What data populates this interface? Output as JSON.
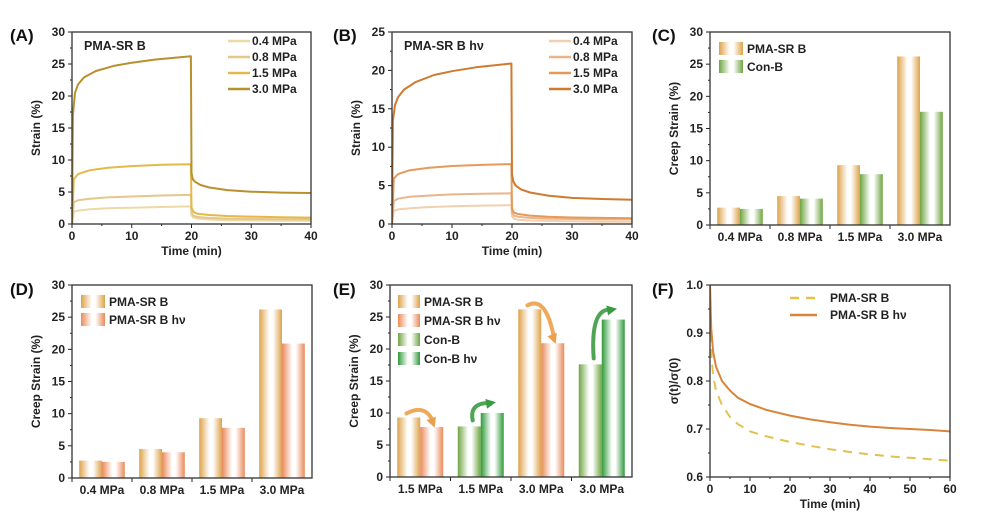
{
  "chart_data": [
    {
      "id": "A",
      "type": "line",
      "panel_label": "(A)",
      "inset_title": "PMA-SR B",
      "xlabel": "Time (min)",
      "ylabel": "Strain (%)",
      "xlim": [
        0,
        40
      ],
      "ylim": [
        0,
        30
      ],
      "xticks": [
        0,
        10,
        20,
        30,
        40
      ],
      "yticks": [
        0,
        5,
        10,
        15,
        20,
        25,
        30
      ],
      "legend_position": "top-right",
      "series": [
        {
          "name": "0.4 MPa",
          "color": "#ecd9a6",
          "x": [
            0,
            0.3,
            1,
            3,
            6,
            10,
            15,
            19.9,
            20,
            20.3,
            21,
            23,
            26,
            30,
            35,
            40
          ],
          "y": [
            0,
            1.9,
            2.1,
            2.3,
            2.45,
            2.55,
            2.65,
            2.75,
            1.4,
            1.0,
            0.85,
            0.7,
            0.6,
            0.55,
            0.5,
            0.5
          ]
        },
        {
          "name": "0.8 MPa",
          "color": "#e5c78a",
          "x": [
            0,
            0.3,
            1,
            3,
            6,
            10,
            15,
            19.9,
            20,
            20.3,
            21,
            23,
            26,
            30,
            35,
            40
          ],
          "y": [
            0,
            3.4,
            3.7,
            3.95,
            4.15,
            4.3,
            4.45,
            4.55,
            1.8,
            1.3,
            1.1,
            0.95,
            0.85,
            0.8,
            0.75,
            0.7
          ]
        },
        {
          "name": "1.5 MPa",
          "color": "#e2b94a",
          "x": [
            0,
            0.3,
            1,
            3,
            6,
            10,
            15,
            19.9,
            20,
            20.3,
            21,
            23,
            26,
            30,
            35,
            40
          ],
          "y": [
            0,
            7.0,
            7.8,
            8.4,
            8.8,
            9.05,
            9.25,
            9.35,
            2.6,
            1.9,
            1.6,
            1.4,
            1.25,
            1.15,
            1.05,
            1.0
          ]
        },
        {
          "name": "3.0 MPa",
          "color": "#b8902e",
          "x": [
            0,
            0.15,
            0.5,
            1,
            2,
            4,
            7,
            10,
            14,
            19.9,
            20,
            20.2,
            20.6,
            21.5,
            23,
            26,
            30,
            35,
            40
          ],
          "y": [
            0,
            17,
            20.5,
            21.8,
            22.9,
            23.9,
            24.7,
            25.2,
            25.7,
            26.2,
            8.0,
            7.0,
            6.6,
            6.1,
            5.7,
            5.3,
            5.05,
            4.9,
            4.85
          ]
        }
      ]
    },
    {
      "id": "B",
      "type": "line",
      "panel_label": "(B)",
      "inset_title": "PMA-SR B hν",
      "xlabel": "Time (min)",
      "ylabel": "Strain (%)",
      "xlim": [
        0,
        40
      ],
      "ylim": [
        0,
        25
      ],
      "xticks": [
        0,
        10,
        20,
        30,
        40
      ],
      "yticks": [
        0,
        5,
        10,
        15,
        20,
        25
      ],
      "legend_position": "top-right",
      "series": [
        {
          "name": "0.4 MPa",
          "color": "#f2cfae",
          "x": [
            0,
            0.3,
            1,
            3,
            6,
            10,
            15,
            19.9,
            20,
            20.3,
            21,
            23,
            26,
            30,
            35,
            40
          ],
          "y": [
            0,
            1.7,
            1.9,
            2.05,
            2.2,
            2.3,
            2.4,
            2.45,
            1.0,
            0.7,
            0.55,
            0.45,
            0.4,
            0.35,
            0.3,
            0.3
          ]
        },
        {
          "name": "0.8 MPa",
          "color": "#eab58a",
          "x": [
            0,
            0.3,
            1,
            3,
            6,
            10,
            15,
            19.9,
            20,
            20.3,
            21,
            23,
            26,
            30,
            35,
            40
          ],
          "y": [
            0,
            3.0,
            3.3,
            3.55,
            3.7,
            3.85,
            3.95,
            4.0,
            1.5,
            1.1,
            0.95,
            0.8,
            0.7,
            0.65,
            0.6,
            0.6
          ]
        },
        {
          "name": "1.5 MPa",
          "color": "#e59a5a",
          "x": [
            0,
            0.3,
            1,
            3,
            6,
            10,
            15,
            19.9,
            20,
            20.3,
            21,
            23,
            26,
            30,
            35,
            40
          ],
          "y": [
            0,
            5.9,
            6.5,
            7.0,
            7.3,
            7.55,
            7.7,
            7.8,
            2.0,
            1.5,
            1.3,
            1.1,
            0.95,
            0.85,
            0.8,
            0.75
          ]
        },
        {
          "name": "3.0 MPa",
          "color": "#d07a30",
          "x": [
            0,
            0.15,
            0.5,
            1,
            2,
            4,
            7,
            10,
            14,
            19.9,
            20,
            20.2,
            20.6,
            21.5,
            23,
            26,
            30,
            35,
            40
          ],
          "y": [
            0,
            13.5,
            15.5,
            16.5,
            17.5,
            18.5,
            19.4,
            19.9,
            20.4,
            20.9,
            6.5,
            5.6,
            5.0,
            4.5,
            4.1,
            3.7,
            3.4,
            3.25,
            3.15
          ]
        }
      ]
    },
    {
      "id": "C",
      "type": "bar",
      "panel_label": "(C)",
      "ylabel": "Creep Strain (%)",
      "categories": [
        "0.4 MPa",
        "0.8 MPa",
        "1.5 MPa",
        "3.0 MPa"
      ],
      "ylim": [
        0,
        30
      ],
      "yticks": [
        0,
        5,
        10,
        15,
        20,
        25,
        30
      ],
      "legend_position": "top-left",
      "series": [
        {
          "name": "PMA-SR B",
          "color": "#dda24a",
          "values": [
            2.7,
            4.5,
            9.3,
            26.2
          ]
        },
        {
          "name": "Con-B",
          "color": "#6fa542",
          "values": [
            2.5,
            4.1,
            7.9,
            17.6
          ]
        }
      ]
    },
    {
      "id": "D",
      "type": "bar",
      "panel_label": "(D)",
      "ylabel": "Creep Strain (%)",
      "categories": [
        "0.4 MPa",
        "0.8 MPa",
        "1.5 MPa",
        "3.0 MPa"
      ],
      "ylim": [
        0,
        30
      ],
      "yticks": [
        0,
        5,
        10,
        15,
        20,
        25,
        30
      ],
      "legend_position": "top-left",
      "series": [
        {
          "name": "PMA-SR B",
          "color": "#dda24a",
          "values": [
            2.7,
            4.5,
            9.3,
            26.2
          ]
        },
        {
          "name": "PMA-SR B hν",
          "color": "#e98a5a",
          "values": [
            2.5,
            4.0,
            7.8,
            20.9
          ]
        }
      ]
    },
    {
      "id": "E",
      "type": "bar",
      "panel_label": "(E)",
      "ylabel": "Creep Strain (%)",
      "categories": [
        "1.5 MPa",
        "1.5 MPa",
        "3.0 MPa",
        "3.0 MPa"
      ],
      "ylim": [
        0,
        30
      ],
      "yticks": [
        0,
        5,
        10,
        15,
        20,
        25,
        30
      ],
      "legend_position": "top-left",
      "legend": [
        {
          "name": "PMA-SR B",
          "color": "#dda24a"
        },
        {
          "name": "PMA-SR B hν",
          "color": "#e98a5a"
        },
        {
          "name": "Con-B",
          "color": "#6fa542"
        },
        {
          "name": "Con-B hν",
          "color": "#2f9a3a"
        }
      ],
      "groups": [
        {
          "category": "1.5 MPa",
          "bars": [
            {
              "series": "PMA-SR B",
              "value": 9.3
            },
            {
              "series": "PMA-SR B hν",
              "value": 7.8
            }
          ],
          "arrow": "down",
          "arrow_color": "#eda04a"
        },
        {
          "category": "1.5 MPa",
          "bars": [
            {
              "series": "Con-B",
              "value": 7.9
            },
            {
              "series": "Con-B hν",
              "value": 10.0
            }
          ],
          "arrow": "up",
          "arrow_color": "#3c9a44"
        },
        {
          "category": "3.0 MPa",
          "bars": [
            {
              "series": "PMA-SR B",
              "value": 26.2
            },
            {
              "series": "PMA-SR B hν",
              "value": 20.9
            }
          ],
          "arrow": "down",
          "arrow_color": "#eda04a"
        },
        {
          "category": "3.0 MPa",
          "bars": [
            {
              "series": "Con-B",
              "value": 17.6
            },
            {
              "series": "Con-B hν",
              "value": 24.6
            }
          ],
          "arrow": "up",
          "arrow_color": "#3c9a44"
        }
      ]
    },
    {
      "id": "F",
      "type": "line",
      "panel_label": "(F)",
      "xlabel": "Time (min)",
      "ylabel": "σ(t)/σ(0)",
      "xlim": [
        0,
        60
      ],
      "ylim": [
        0.6,
        1.0
      ],
      "xticks": [
        0,
        10,
        20,
        30,
        40,
        50,
        60
      ],
      "yticks": [
        0.6,
        0.7,
        0.8,
        0.9,
        1.0
      ],
      "ytick_labels": [
        "0.6",
        "0.7",
        "0.8",
        "0.9",
        "1.0"
      ],
      "legend_position": "top-right",
      "series": [
        {
          "name": "PMA-SR B",
          "color": "#e2c14e",
          "style": "dashed",
          "x": [
            0,
            0.3,
            0.8,
            1.5,
            3,
            5,
            7,
            10,
            14,
            20,
            25,
            30,
            35,
            40,
            45,
            50,
            55,
            60
          ],
          "y": [
            1.0,
            0.86,
            0.81,
            0.78,
            0.75,
            0.725,
            0.71,
            0.695,
            0.685,
            0.673,
            0.665,
            0.658,
            0.652,
            0.647,
            0.643,
            0.64,
            0.637,
            0.634
          ]
        },
        {
          "name": "PMA-SR B hν",
          "color": "#d9843a",
          "style": "solid",
          "x": [
            0,
            0.3,
            0.8,
            1.5,
            3,
            5,
            7,
            10,
            14,
            20,
            25,
            30,
            35,
            40,
            45,
            50,
            55,
            60
          ],
          "y": [
            1.0,
            0.91,
            0.86,
            0.83,
            0.8,
            0.78,
            0.765,
            0.752,
            0.74,
            0.728,
            0.72,
            0.714,
            0.709,
            0.705,
            0.702,
            0.7,
            0.698,
            0.695
          ]
        }
      ]
    }
  ]
}
